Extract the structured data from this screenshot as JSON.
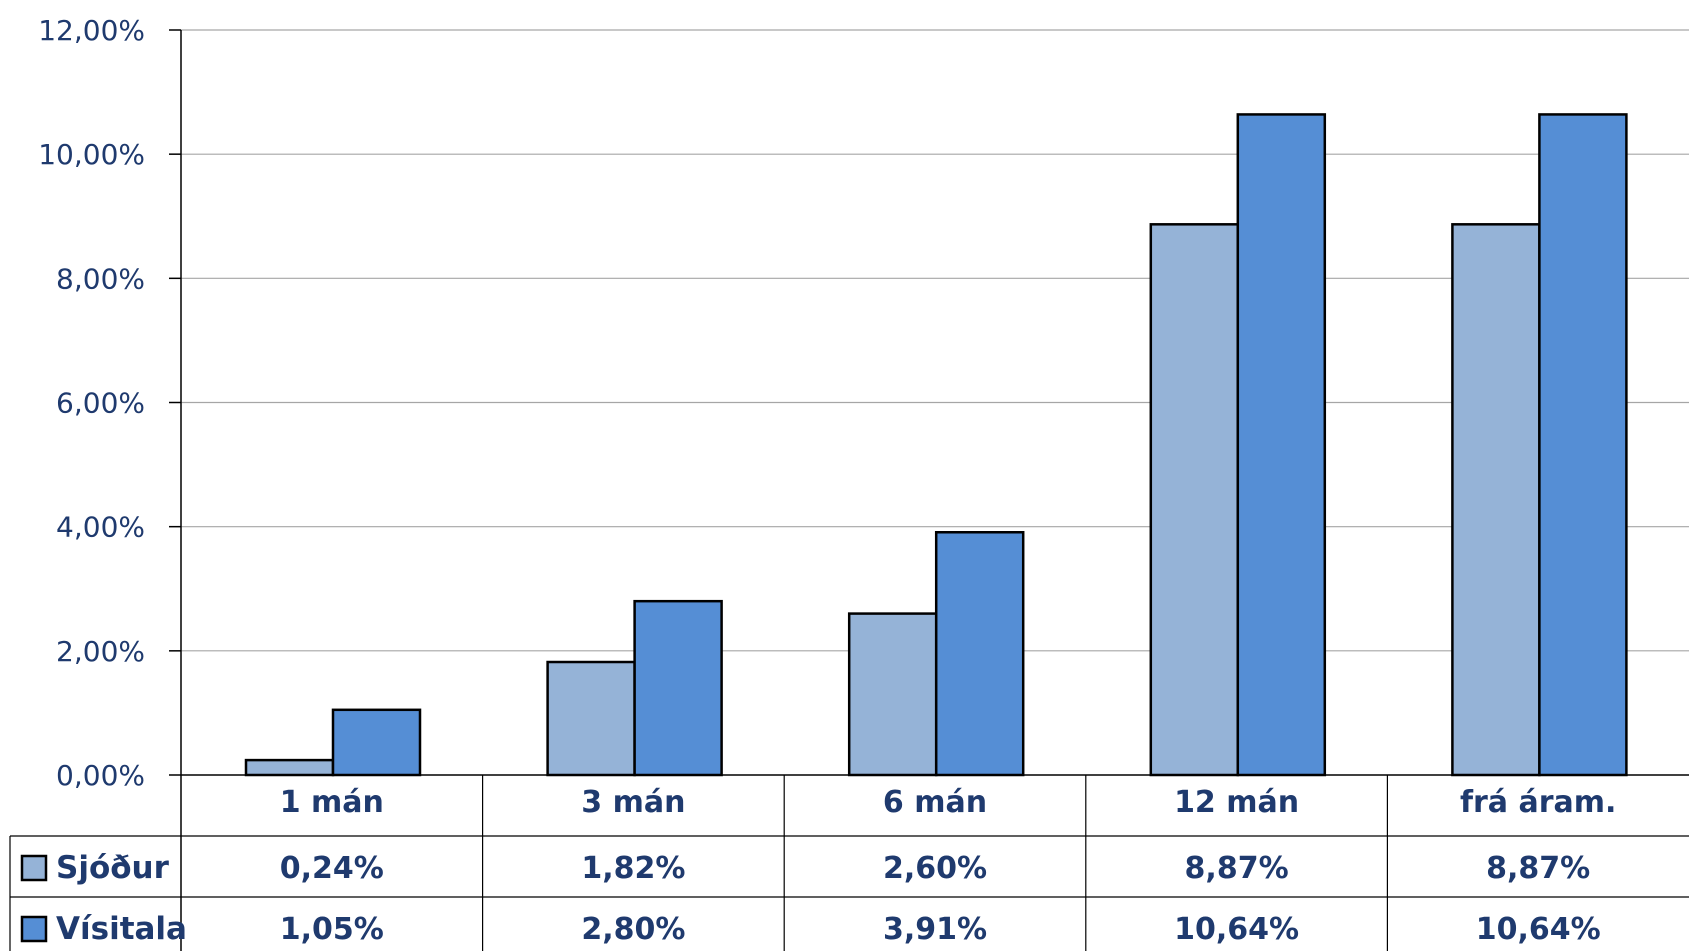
{
  "chart_data": {
    "type": "bar",
    "categories": [
      "1 mán",
      "3 mán",
      "6 mán",
      "12 mán",
      "frá áram."
    ],
    "series": [
      {
        "name": "Sjóður",
        "values": [
          0.24,
          1.82,
          2.6,
          8.87,
          8.87
        ],
        "labels": [
          "0,24%",
          "1,82%",
          "2,60%",
          "8,87%",
          "8,87%"
        ],
        "color": "#95b3d7"
      },
      {
        "name": "Vísitala",
        "values": [
          1.05,
          2.8,
          3.91,
          10.64,
          10.64
        ],
        "labels": [
          "1,05%",
          "2,80%",
          "3,91%",
          "10,64%",
          "10,64%"
        ],
        "color": "#558ed5"
      }
    ],
    "yticks": [
      "0,00%",
      "2,00%",
      "4,00%",
      "6,00%",
      "8,00%",
      "10,00%",
      "12,00%"
    ],
    "ylim": [
      0,
      12
    ],
    "grid": true,
    "legend": "data-table",
    "title": "",
    "xlabel": "",
    "ylabel": ""
  }
}
